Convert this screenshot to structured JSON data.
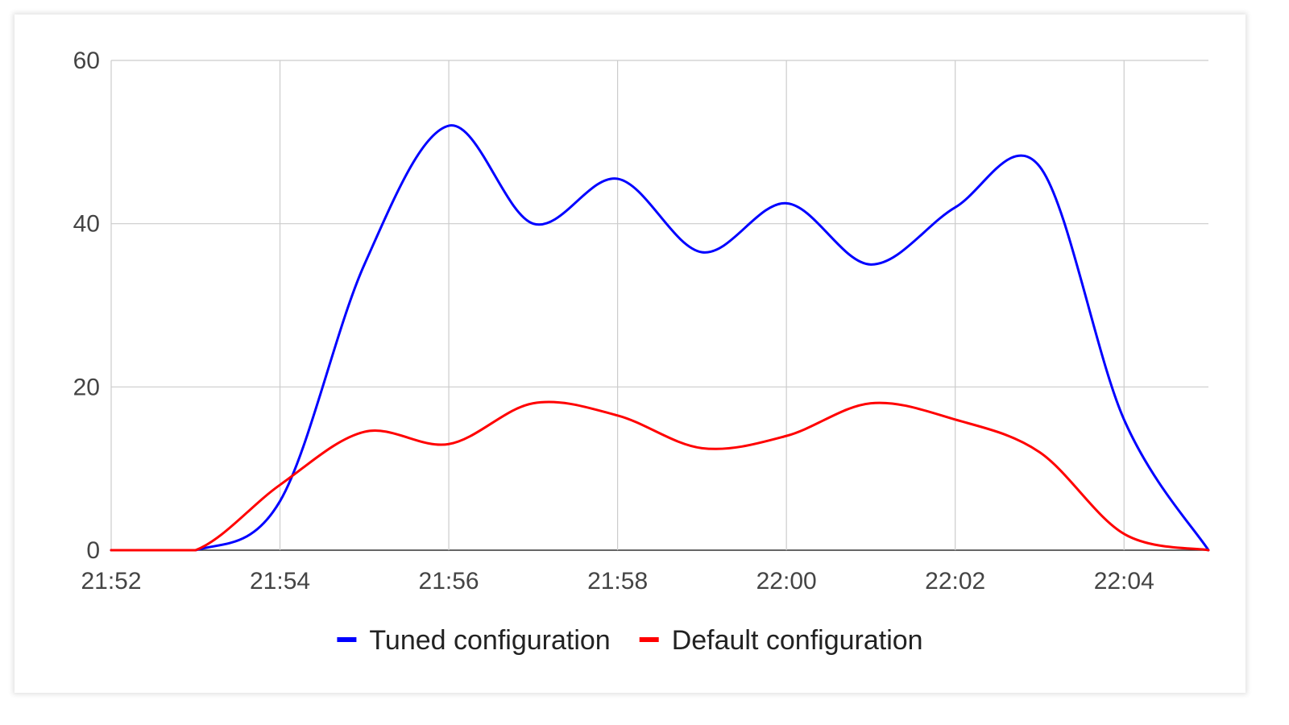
{
  "chart_data": {
    "type": "line",
    "title": "",
    "xlabel": "",
    "ylabel": "",
    "x_ticks": [
      "21:52",
      "21:54",
      "21:56",
      "21:58",
      "22:00",
      "22:02",
      "22:04"
    ],
    "x_range": [
      "21:52",
      "22:05"
    ],
    "y_ticks": [
      "0",
      "20",
      "40",
      "60"
    ],
    "ylim": [
      0,
      60
    ],
    "grid": true,
    "legend_position": "bottom",
    "x": [
      "21:52",
      "21:53",
      "21:54",
      "21:55",
      "21:56",
      "21:57",
      "21:58",
      "21:59",
      "22:00",
      "22:01",
      "22:02",
      "22:03",
      "22:04",
      "22:05"
    ],
    "series": [
      {
        "name": "Tuned configuration",
        "color": "#0000ff",
        "values": [
          0,
          0,
          6,
          35,
          52,
          40,
          45.5,
          36.5,
          42.5,
          35,
          42,
          47,
          16,
          0
        ]
      },
      {
        "name": "Default configuration",
        "color": "#ff0000",
        "values": [
          0,
          0,
          8,
          14.5,
          13,
          18,
          16.5,
          12.5,
          14,
          18,
          16,
          12,
          2,
          0
        ]
      }
    ]
  }
}
